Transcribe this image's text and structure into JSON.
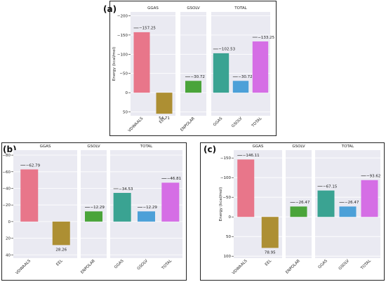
{
  "chart_data": [
    {
      "id": "a",
      "panel_label": "(a)",
      "type": "bar",
      "ylabel": "Energy (kcal/mol)",
      "ylim": [
        60,
        -210
      ],
      "yticks": [
        -200,
        -150,
        -100,
        -50,
        0,
        50
      ],
      "tick_labels": [
        "−200",
        "−150",
        "−100",
        "−50",
        "0",
        "50"
      ],
      "groups": [
        {
          "title": "GGAS",
          "bars": [
            {
              "category": "VDWAALS",
              "value": -157.25,
              "label": "−157.25",
              "color": "#e8768a"
            },
            {
              "category": "EEL",
              "value": 54.71,
              "label": "54.71",
              "color": "#ad8f33"
            }
          ]
        },
        {
          "title": "GSOLV",
          "bars": [
            {
              "category": "ENPOLAR",
              "value": -30.72,
              "label": "−30.72",
              "color": "#4aa43a"
            }
          ]
        },
        {
          "title": "TOTAL",
          "bars": [
            {
              "category": "GGAS",
              "value": -102.53,
              "label": "−102.53",
              "color": "#3aa392"
            },
            {
              "category": "GSOLV",
              "value": -30.72,
              "label": "−30.72",
              "color": "#4ca0d8"
            },
            {
              "category": "TOTAL",
              "value": -133.25,
              "label": "−133.25",
              "color": "#d56ee5"
            }
          ]
        }
      ]
    },
    {
      "id": "b",
      "panel_label": "(b)",
      "type": "bar",
      "ylabel": "Energy (kcal/mol)",
      "ylim": [
        44,
        -86
      ],
      "yticks": [
        -80,
        -60,
        -40,
        -20,
        0,
        20,
        40
      ],
      "tick_labels": [
        "−80",
        "−60",
        "−40",
        "−20",
        "0",
        "20",
        "40"
      ],
      "groups": [
        {
          "title": "GGAS",
          "bars": [
            {
              "category": "VDWAALS",
              "value": -62.79,
              "label": "−62.79",
              "color": "#e8768a"
            },
            {
              "category": "EEL",
              "value": 28.26,
              "label": "28.26",
              "color": "#ad8f33"
            }
          ]
        },
        {
          "title": "GSOLV",
          "bars": [
            {
              "category": "ENPOLAR",
              "value": -12.29,
              "label": "−12.29",
              "color": "#4aa43a"
            }
          ]
        },
        {
          "title": "TOTAL",
          "bars": [
            {
              "category": "GGAS",
              "value": -34.53,
              "label": "−34.53",
              "color": "#3aa392"
            },
            {
              "category": "GSOLV",
              "value": -12.29,
              "label": "−12.29",
              "color": "#4ca0d8"
            },
            {
              "category": "TOTAL",
              "value": -46.81,
              "label": "−46.81",
              "color": "#d56ee5"
            }
          ]
        }
      ]
    },
    {
      "id": "c",
      "panel_label": "(c)",
      "type": "bar",
      "ylabel": "Energy (kcal/mol)",
      "ylim": [
        105,
        -170
      ],
      "yticks": [
        -150,
        -100,
        -50,
        0,
        50,
        100
      ],
      "tick_labels": [
        "−150",
        "−100",
        "−50",
        "0",
        "50",
        "100"
      ],
      "groups": [
        {
          "title": "GGAS",
          "bars": [
            {
              "category": "VDWAALS",
              "value": -146.11,
              "label": "−146.11",
              "color": "#e8768a"
            },
            {
              "category": "EEL",
              "value": 78.95,
              "label": "78.95",
              "color": "#ad8f33"
            }
          ]
        },
        {
          "title": "GSOLV",
          "bars": [
            {
              "category": "ENPOLAR",
              "value": -26.47,
              "label": "−26.47",
              "color": "#4aa43a"
            }
          ]
        },
        {
          "title": "TOTAL",
          "bars": [
            {
              "category": "GGAS",
              "value": -67.15,
              "label": "−67.15",
              "color": "#3aa392"
            },
            {
              "category": "GSOLV",
              "value": -26.47,
              "label": "−26.47",
              "color": "#4ca0d8"
            },
            {
              "category": "TOTAL",
              "value": -93.62,
              "label": "−93.62",
              "color": "#d56ee5"
            }
          ]
        }
      ]
    }
  ]
}
